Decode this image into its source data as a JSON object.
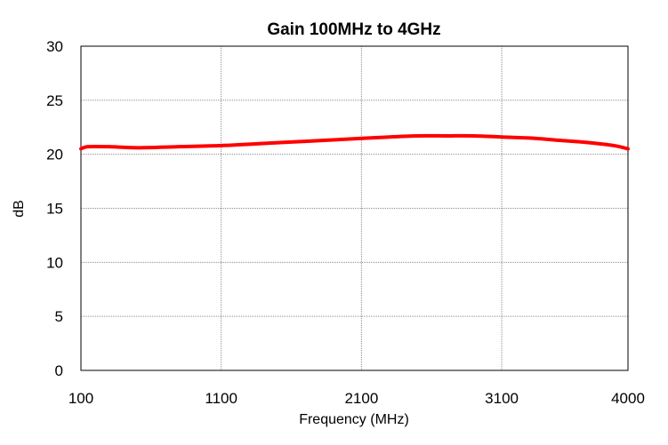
{
  "chart_data": {
    "type": "line",
    "title": "Gain 100MHz to 4GHz",
    "xlabel": "Frequency (MHz)",
    "ylabel": "dB",
    "xlim": [
      100,
      4000
    ],
    "ylim": [
      0,
      30
    ],
    "x_ticks": [
      100,
      1100,
      2100,
      3100,
      4000
    ],
    "y_ticks": [
      0,
      5,
      10,
      15,
      20,
      25,
      30
    ],
    "grid": true,
    "legend": "none",
    "series": [
      {
        "color": "#ff0000",
        "x": [
          100,
          150,
          300,
          500,
          800,
          1100,
          1400,
          1700,
          2000,
          2300,
          2500,
          2700,
          2900,
          3100,
          3300,
          3500,
          3700,
          3900,
          4000
        ],
        "y": [
          20.5,
          20.7,
          20.7,
          20.6,
          20.7,
          20.8,
          21.0,
          21.2,
          21.4,
          21.6,
          21.7,
          21.7,
          21.7,
          21.6,
          21.5,
          21.3,
          21.1,
          20.8,
          20.5
        ]
      }
    ]
  }
}
